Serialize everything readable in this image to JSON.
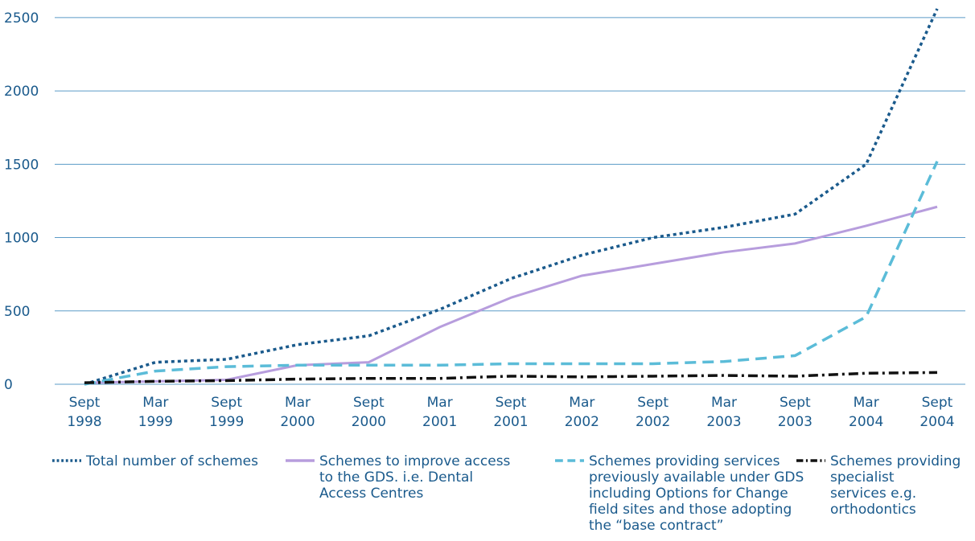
{
  "chart_data": {
    "type": "line",
    "categories": [
      "Sept 1998",
      "Mar 1999",
      "Sept 1999",
      "Mar 2000",
      "Sept 2000",
      "Mar 2001",
      "Sept 2001",
      "Mar 2002",
      "Sept 2002",
      "Mar 2003",
      "Sept 2003",
      "Mar 2004",
      "Sept 2004"
    ],
    "series": [
      {
        "name": "Total number of schemes",
        "color": "#1a5a8c",
        "dash": "4 4",
        "values": [
          0,
          150,
          170,
          270,
          330,
          510,
          720,
          880,
          1000,
          1070,
          1160,
          1500,
          2560
        ]
      },
      {
        "name": "Schemes to improve access to the GDS. i.e. Dental Access Centres",
        "color": "#b79ddd",
        "dash": "none",
        "values": [
          10,
          20,
          30,
          130,
          150,
          390,
          590,
          740,
          820,
          900,
          960,
          1080,
          1210
        ]
      },
      {
        "name": "Schemes providing services previously available under GDS including Options for Change field sites and those adopting the “base contract”",
        "color": "#5bbcd8",
        "dash": "14 8",
        "values": [
          0,
          90,
          120,
          130,
          130,
          130,
          140,
          140,
          140,
          155,
          195,
          460,
          1520
        ]
      },
      {
        "name": "Schemes providing specialist services e.g. orthodontics",
        "color": "#111111",
        "dash": "12 5 3 5",
        "values": [
          10,
          20,
          25,
          35,
          40,
          40,
          55,
          50,
          55,
          60,
          55,
          75,
          80
        ]
      }
    ],
    "ylim": [
      0,
      2620
    ],
    "yticks": [
      0,
      500,
      1000,
      1500,
      2000,
      2500
    ],
    "grid": true
  }
}
